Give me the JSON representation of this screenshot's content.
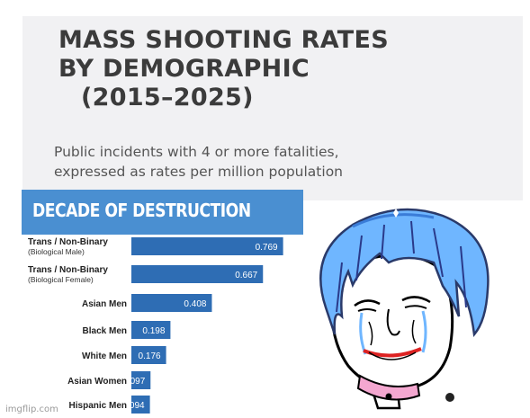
{
  "header": {
    "title_lines": [
      "MASS SHOOTING RATES",
      "BY DEMOGRAPHIC",
      "(2015–2025)"
    ],
    "subtitle_lines": [
      "Public incidents with 4 or more fatalities,",
      "expressed as rates per million population"
    ]
  },
  "banner": {
    "text": "DECADE OF DESTRUCTION"
  },
  "colors": {
    "bar": "#2e6db4",
    "banner": "#4a8fd1",
    "hair": "#6fb6ff",
    "collar": "#f4a7d0"
  },
  "chart_data": {
    "type": "bar",
    "orientation": "horizontal",
    "categories": [
      {
        "label": "Trans / Non-Binary",
        "sublabel": "(Biological Male)"
      },
      {
        "label": "Trans / Non-Binary",
        "sublabel": "(Biological Female)"
      },
      {
        "label": "Asian Men",
        "sublabel": ""
      },
      {
        "label": "Black Men",
        "sublabel": ""
      },
      {
        "label": "White Men",
        "sublabel": ""
      },
      {
        "label": "Asian Women",
        "sublabel": ""
      },
      {
        "label": "Hispanic Men",
        "sublabel": ""
      }
    ],
    "values": [
      0.769,
      0.667,
      0.408,
      0.198,
      0.176,
      0.097,
      0.094
    ],
    "value_labels": [
      "0.769",
      "0.667",
      "0.408",
      "0.198",
      "0.176",
      "0.097",
      "0.094"
    ],
    "xlim": [
      0,
      0.83
    ]
  },
  "watermark": "imgflip.com",
  "meme": {
    "icon": "crying-wojak-face-icon"
  }
}
